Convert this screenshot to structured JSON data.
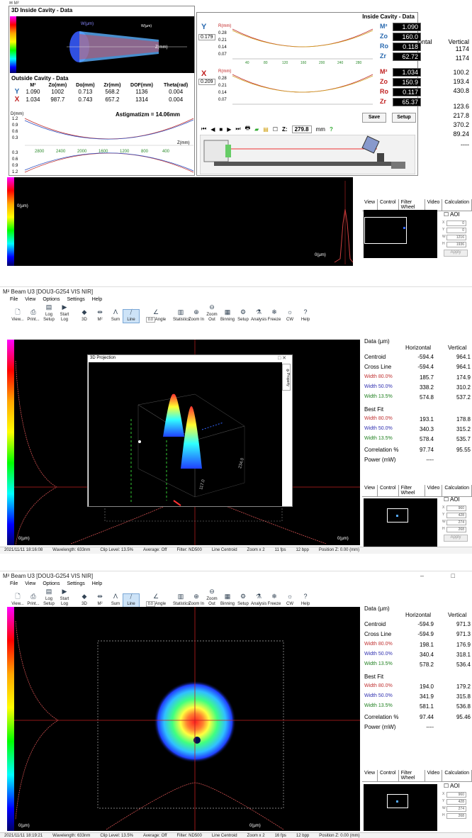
{
  "app": {
    "title": "M² Beam U3  [DOU3-G254 VIS NIR]",
    "menu": [
      "File",
      "View",
      "Options",
      "Settings",
      "Help"
    ],
    "toolbar": [
      "View...",
      "Print...",
      "Log Setup",
      "Start Log",
      "3D",
      "M²",
      "Sum",
      "Line",
      "Angle",
      "Statistics",
      "Zoom In",
      "Zoom Out",
      "Binning",
      "Setup",
      "Analysis",
      "Freeze",
      "CW",
      "Help"
    ],
    "angle_value": "0.0"
  },
  "panel1": {
    "inside_title": "3D Inside Cavity - Data",
    "inside_axis_z": "Z(mm)",
    "inside_axis_w": "W(µm)",
    "outside_title": "Outside Cavity - Data",
    "outside_headers": [
      "",
      "M²",
      "Zo(mm)",
      "Do(mm)",
      "Zr(mm)",
      "DOF(mm)",
      "Theta(rad)"
    ],
    "outside_rows": [
      {
        "axis": "Y",
        "vals": [
          "1.090",
          "1002",
          "0.713",
          "568.2",
          "1136",
          "0.004"
        ]
      },
      {
        "axis": "X",
        "vals": [
          "1.034",
          "987.7",
          "0.743",
          "657.2",
          "1314",
          "0.004"
        ]
      }
    ],
    "astigmatism": "Astigmatizm = 14.06mm",
    "d_axis": "D(mm)",
    "d_ticks_top": [
      "1.2",
      "0.9",
      "0.6",
      "0.3"
    ],
    "d_ticks_bottom": [
      "0.3",
      "0.6",
      "0.9",
      "1.2"
    ],
    "z_ticks": [
      "2800",
      "2400",
      "2000",
      "1600",
      "1200",
      "800",
      "400"
    ],
    "z_axis": "Z(mm)",
    "cavity_title": "Inside Cavity - Data",
    "y_label": "Y",
    "x_label": "X",
    "y_marker": "0.179",
    "x_marker": "0.209",
    "r_axis": "R(mm)",
    "r_ticks": [
      "0.28",
      "0.21",
      "0.14",
      "0.07"
    ],
    "z_ticks_small": [
      "40",
      "80",
      "120",
      "160",
      "200",
      "240",
      "280"
    ],
    "y_params": [
      {
        "k": "M²",
        "v": "1.090"
      },
      {
        "k": "Zo",
        "v": "160.0"
      },
      {
        "k": "Ro",
        "v": "0.118"
      },
      {
        "k": "Zr",
        "v": "62.72"
      }
    ],
    "x_params": [
      {
        "k": "M²",
        "v": "1.034"
      },
      {
        "k": "Zo",
        "v": "150.9"
      },
      {
        "k": "Ro",
        "v": "0.117"
      },
      {
        "k": "Zr",
        "v": "65.37"
      }
    ],
    "save_label": "Save",
    "setup_label": "Setup",
    "z_label": "Z:",
    "z_value": "279.8",
    "z_unit": "mm",
    "bg_table_header": [
      "ontal",
      "Vertical"
    ],
    "bg_table_values": [
      [
        "",
        "1174"
      ],
      [
        "",
        "1174"
      ],
      [
        "",
        "100.2"
      ],
      [
        "",
        "193.4"
      ],
      [
        "",
        "430.8"
      ],
      [
        "",
        "123.6"
      ],
      [
        "",
        "217.8"
      ],
      [
        "",
        "370.2"
      ],
      [
        "",
        "89.24"
      ],
      [
        "",
        "----"
      ]
    ],
    "bottom_y_label": "0(µm)",
    "bottom_x_label": "0(µm)",
    "tabs": [
      "View",
      "Control",
      "Filter Wheel",
      "Video",
      "Calculation"
    ],
    "aoi_label": "AOI",
    "aoi_vals": [
      "0",
      "0",
      "1216",
      "1936"
    ],
    "apply_label": "Apply"
  },
  "panel2": {
    "dialog_title": "3D Projection",
    "dialog_ctrls": "□  ✕",
    "property_label": "Property",
    "axis_a": "117.0",
    "axis_b": "234.0",
    "data_title": "Data (µm)",
    "col_h": "Horizontal",
    "col_v": "Vertical",
    "rows": [
      {
        "label": "Centroid",
        "h": "-594.4",
        "v": "964.1",
        "c": ""
      },
      {
        "label": "Cross Line",
        "h": "-594.4",
        "v": "964.1",
        "c": ""
      },
      {
        "label": "Width 80.0%",
        "h": "185.7",
        "v": "174.9",
        "c": "cred"
      },
      {
        "label": "Width 50.0%",
        "h": "338.2",
        "v": "310.2",
        "c": "cblue"
      },
      {
        "label": "Width 13.5%",
        "h": "574.8",
        "v": "537.2",
        "c": "cgreen"
      },
      {
        "label": "Best Fit",
        "h": "",
        "v": "",
        "c": ""
      },
      {
        "label": "Width 80.0%",
        "h": "193.1",
        "v": "178.8",
        "c": "cred"
      },
      {
        "label": "Width 50.0%",
        "h": "340.3",
        "v": "315.2",
        "c": "cblue"
      },
      {
        "label": "Width 13.5%",
        "h": "578.4",
        "v": "535.7",
        "c": "cgreen"
      },
      {
        "label": "Correlation %",
        "h": "97.74",
        "v": "95.55",
        "c": ""
      },
      {
        "label": "Power (mW)",
        "h": "----",
        "v": "",
        "c": ""
      }
    ],
    "aoi_vals": [
      "960",
      "428",
      "274",
      "268"
    ],
    "y_label": "0(µm)",
    "x_label": "0(µm)",
    "status": [
      "2021/11/11 18:16:08",
      "Wavelength: 633nm",
      "Clip Level: 13.5%",
      "Average: Off",
      "Filter: ND500",
      "Line Centroid",
      "Zoom x 2",
      "11 fps",
      "12 bpp",
      "Position Z: 0.00 (mm)"
    ]
  },
  "panel3": {
    "rows": [
      {
        "label": "Centroid",
        "h": "-594.9",
        "v": "971.3",
        "c": ""
      },
      {
        "label": "Cross Line",
        "h": "-594.9",
        "v": "971.3",
        "c": ""
      },
      {
        "label": "Width 80.0%",
        "h": "198.1",
        "v": "176.9",
        "c": "cred"
      },
      {
        "label": "Width 50.0%",
        "h": "340.4",
        "v": "318.1",
        "c": "cblue"
      },
      {
        "label": "Width 13.5%",
        "h": "578.2",
        "v": "536.4",
        "c": "cgreen"
      },
      {
        "label": "Best Fit",
        "h": "",
        "v": "",
        "c": ""
      },
      {
        "label": "Width 80.0%",
        "h": "194.0",
        "v": "179.2",
        "c": "cred"
      },
      {
        "label": "Width 50.0%",
        "h": "341.9",
        "v": "315.8",
        "c": "cblue"
      },
      {
        "label": "Width 13.5%",
        "h": "581.1",
        "v": "536.8",
        "c": "cgreen"
      },
      {
        "label": "Correlation %",
        "h": "97.44",
        "v": "95.46",
        "c": ""
      },
      {
        "label": "Power (mW)",
        "h": "----",
        "v": "",
        "c": ""
      }
    ],
    "status": [
      "2021/11/11 18:19:21",
      "Wavelength: 633nm",
      "Clip Level: 13.5%",
      "Average: Off",
      "Filter: ND500",
      "Line Centroid",
      "Zoom x 2",
      "16 fps",
      "12 bpp",
      "Position Z: 0.00 (mm)"
    ]
  }
}
